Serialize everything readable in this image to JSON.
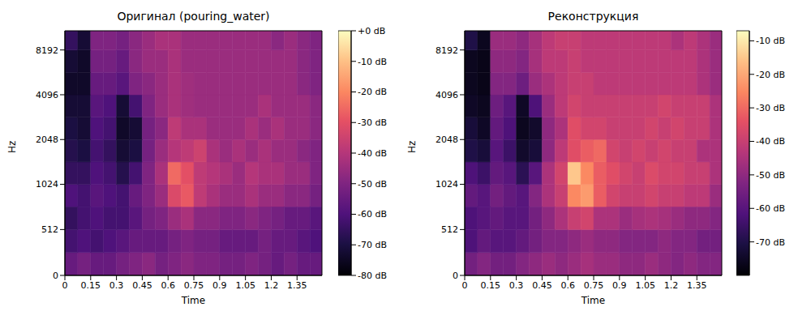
{
  "chart_data": [
    {
      "type": "heatmap",
      "title": "Оригинал (pouring_water)",
      "x_label": "Time",
      "y_label": "Hz",
      "log": "y",
      "xlim": [
        0,
        1.495
      ],
      "xticks": [
        0,
        0.15,
        0.3,
        0.45,
        0.6,
        0.75,
        0.9,
        1.05,
        1.2,
        1.35
      ],
      "ylim": [
        0,
        11025
      ],
      "yticks": [
        0,
        512,
        1024,
        2048,
        4096,
        8192
      ],
      "x_edges": [
        0,
        0.075,
        0.15,
        0.225,
        0.3,
        0.375,
        0.45,
        0.525,
        0.6,
        0.675,
        0.75,
        0.825,
        0.9,
        0.975,
        1.05,
        1.125,
        1.2,
        1.275,
        1.35,
        1.425,
        1.495
      ],
      "y_edges": [
        0,
        256,
        512,
        768,
        1024,
        1448,
        2048,
        2896,
        4096,
        5793,
        8192,
        11025
      ],
      "cells": [
        [
          -55,
          -52,
          -55,
          -55,
          -52,
          -50,
          -48,
          -52,
          -50,
          -48,
          -50,
          -50,
          -52,
          -52,
          -50,
          -52,
          -55,
          -52,
          -55,
          -55
        ],
        [
          -62,
          -60,
          -62,
          -60,
          -58,
          -55,
          -55,
          -55,
          -52,
          -50,
          -52,
          -52,
          -55,
          -55,
          -55,
          -52,
          -55,
          -55,
          -58,
          -60
        ],
        [
          -65,
          -62,
          -60,
          -62,
          -62,
          -58,
          -52,
          -50,
          -45,
          -42,
          -48,
          -48,
          -50,
          -50,
          -48,
          -50,
          -52,
          -55,
          -55,
          -58
        ],
        [
          -60,
          -62,
          -58,
          -60,
          -62,
          -55,
          -50,
          -45,
          -32,
          -28,
          -38,
          -42,
          -45,
          -45,
          -42,
          -45,
          -45,
          -48,
          -48,
          -52
        ],
        [
          -65,
          -65,
          -60,
          -62,
          -68,
          -62,
          -50,
          -42,
          -25,
          -30,
          -38,
          -40,
          -42,
          -45,
          -40,
          -42,
          -42,
          -45,
          -45,
          -50
        ],
        [
          -68,
          -70,
          -62,
          -65,
          -72,
          -70,
          -52,
          -45,
          -40,
          -38,
          -35,
          -42,
          -45,
          -42,
          -45,
          -42,
          -45,
          -45,
          -48,
          -50
        ],
        [
          -70,
          -72,
          -60,
          -62,
          -74,
          -72,
          -52,
          -48,
          -38,
          -42,
          -42,
          -45,
          -45,
          -45,
          -42,
          -45,
          -42,
          -45,
          -45,
          -48
        ],
        [
          -72,
          -72,
          -58,
          -60,
          -72,
          -62,
          -50,
          -45,
          -42,
          -44,
          -45,
          -45,
          -45,
          -45,
          -45,
          -42,
          -45,
          -45,
          -45,
          -48
        ],
        [
          -74,
          -74,
          -55,
          -55,
          -58,
          -50,
          -48,
          -45,
          -42,
          -44,
          -45,
          -45,
          -45,
          -45,
          -45,
          -45,
          -45,
          -45,
          -48,
          -50
        ],
        [
          -72,
          -74,
          -52,
          -52,
          -55,
          -48,
          -45,
          -45,
          -42,
          -45,
          -45,
          -45,
          -45,
          -45,
          -45,
          -45,
          -45,
          -45,
          -48,
          -50
        ],
        [
          -65,
          -72,
          -50,
          -50,
          -52,
          -48,
          -45,
          -42,
          -42,
          -45,
          -45,
          -45,
          -45,
          -45,
          -45,
          -45,
          -48,
          -45,
          -48,
          -50
        ]
      ],
      "colorbar": {
        "range": [
          -80,
          0
        ],
        "ticks": [
          {
            "value": 0,
            "label": "+0 dB"
          },
          {
            "value": -10,
            "label": "-10 dB"
          },
          {
            "value": -20,
            "label": "-20 dB"
          },
          {
            "value": -30,
            "label": "-30 dB"
          },
          {
            "value": -40,
            "label": "-40 dB"
          },
          {
            "value": -50,
            "label": "-50 dB"
          },
          {
            "value": -60,
            "label": "-60 dB"
          },
          {
            "value": -70,
            "label": "-70 dB"
          },
          {
            "value": -80,
            "label": "-80 dB"
          }
        ]
      }
    },
    {
      "type": "heatmap",
      "title": "Реконструкция",
      "x_label": "Time",
      "y_label": "Hz",
      "log": "y",
      "xlim": [
        0,
        1.495
      ],
      "xticks": [
        0,
        0.15,
        0.3,
        0.45,
        0.6,
        0.75,
        0.9,
        1.05,
        1.2,
        1.35
      ],
      "ylim": [
        0,
        11025
      ],
      "yticks": [
        0,
        512,
        1024,
        2048,
        4096,
        8192
      ],
      "x_edges": [
        0,
        0.075,
        0.15,
        0.225,
        0.3,
        0.375,
        0.45,
        0.525,
        0.6,
        0.675,
        0.75,
        0.825,
        0.9,
        0.975,
        1.05,
        1.125,
        1.2,
        1.275,
        1.35,
        1.425,
        1.495
      ],
      "y_edges": [
        0,
        256,
        512,
        768,
        1024,
        1448,
        2048,
        2896,
        4096,
        5793,
        8192,
        11025
      ],
      "cells": [
        [
          -55,
          -52,
          -55,
          -55,
          -52,
          -50,
          -48,
          -50,
          -48,
          -46,
          -48,
          -48,
          -50,
          -50,
          -48,
          -50,
          -52,
          -50,
          -52,
          -52
        ],
        [
          -62,
          -58,
          -60,
          -60,
          -58,
          -55,
          -52,
          -52,
          -50,
          -48,
          -50,
          -50,
          -52,
          -52,
          -52,
          -50,
          -52,
          -52,
          -55,
          -55
        ],
        [
          -62,
          -60,
          -58,
          -60,
          -60,
          -55,
          -50,
          -45,
          -40,
          -38,
          -45,
          -45,
          -48,
          -46,
          -45,
          -46,
          -48,
          -50,
          -50,
          -52
        ],
        [
          -58,
          -60,
          -55,
          -58,
          -60,
          -52,
          -45,
          -40,
          -25,
          -22,
          -32,
          -38,
          -40,
          -40,
          -38,
          -40,
          -40,
          -42,
          -42,
          -48
        ],
        [
          -62,
          -65,
          -58,
          -60,
          -68,
          -60,
          -45,
          -38,
          -15,
          -25,
          -32,
          -35,
          -38,
          -40,
          -36,
          -38,
          -38,
          -40,
          -40,
          -45
        ],
        [
          -70,
          -72,
          -60,
          -65,
          -74,
          -72,
          -50,
          -42,
          -35,
          -32,
          -30,
          -38,
          -40,
          -38,
          -40,
          -38,
          -40,
          -40,
          -45,
          -45
        ],
        [
          -72,
          -75,
          -58,
          -62,
          -76,
          -74,
          -50,
          -45,
          -35,
          -38,
          -38,
          -40,
          -40,
          -40,
          -38,
          -40,
          -38,
          -40,
          -40,
          -45
        ],
        [
          -75,
          -76,
          -56,
          -60,
          -75,
          -62,
          -48,
          -42,
          -38,
          -40,
          -40,
          -40,
          -40,
          -40,
          -40,
          -38,
          -40,
          -40,
          -40,
          -45
        ],
        [
          -76,
          -77,
          -52,
          -52,
          -56,
          -48,
          -45,
          -42,
          -40,
          -40,
          -42,
          -42,
          -42,
          -42,
          -42,
          -42,
          -42,
          -42,
          -45,
          -48
        ],
        [
          -76,
          -77,
          -50,
          -50,
          -52,
          -46,
          -42,
          -42,
          -40,
          -42,
          -42,
          -42,
          -42,
          -42,
          -42,
          -42,
          -42,
          -42,
          -45,
          -48
        ],
        [
          -70,
          -76,
          -48,
          -48,
          -50,
          -46,
          -42,
          -40,
          -40,
          -42,
          -42,
          -42,
          -42,
          -42,
          -42,
          -42,
          -45,
          -42,
          -45,
          -48
        ]
      ],
      "colorbar": {
        "range": [
          -80,
          -7
        ],
        "ticks": [
          {
            "value": -10,
            "label": "-10 dB"
          },
          {
            "value": -20,
            "label": "-20 dB"
          },
          {
            "value": -30,
            "label": "-30 dB"
          },
          {
            "value": -40,
            "label": "-40 dB"
          },
          {
            "value": -50,
            "label": "-50 dB"
          },
          {
            "value": -60,
            "label": "-60 dB"
          },
          {
            "value": -70,
            "label": "-70 dB"
          }
        ]
      }
    }
  ]
}
